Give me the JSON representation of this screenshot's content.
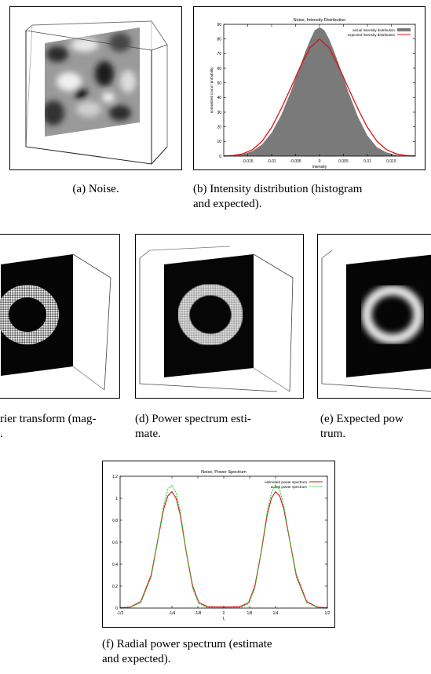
{
  "captions": {
    "a": "(a) Noise.",
    "b_line1": "(b) Intensity distribution (histogram",
    "b_line2": "and expected).",
    "c_line1": "rier transform (mag-",
    "c_line2": ".",
    "d_line1": "(d) Power spectrum esti-",
    "d_line2": "mate.",
    "e_line1": "(e) Expected pow",
    "e_line2": "trum.",
    "f_line1": "(f) Radial power spectrum (estimate",
    "f_line2": "and expected)."
  },
  "colors": {
    "histogram_fill": "#7a7a7a",
    "expected_line": "#dd1111",
    "actual_ps_line": "#22cc22",
    "estimated_ps_line": "#cc1111"
  },
  "chart_data": [
    {
      "id": "intensity",
      "type": "area",
      "title": "Noise, Intensity Distribution",
      "xlabel": "intensity",
      "ylabel": "normalized count / probability",
      "xlim": [
        -0.02,
        0.02
      ],
      "ylim": [
        0,
        90
      ],
      "xticks": [
        -0.015,
        -0.01,
        -0.005,
        0,
        0.005,
        0.01,
        0.015
      ],
      "xtick_labels": [
        "-0.015",
        "-0.01",
        "-0.005",
        "0",
        "0.005",
        "0.01",
        "0.015"
      ],
      "yticks": [
        0,
        10,
        20,
        30,
        40,
        50,
        60,
        70,
        80,
        90
      ],
      "ytick_labels": [
        "0",
        "10",
        "20",
        "30",
        "40",
        "50",
        "60",
        "70",
        "80",
        "90"
      ],
      "legend_position": "top-right",
      "series": [
        {
          "name": "actual intensity distribution",
          "kind": "histogram",
          "x": [
            -0.018,
            -0.016,
            -0.014,
            -0.012,
            -0.01,
            -0.008,
            -0.006,
            -0.004,
            -0.003,
            -0.002,
            -0.001,
            0.0,
            0.001,
            0.002,
            0.003,
            0.004,
            0.006,
            0.008,
            0.01,
            0.012,
            0.014,
            0.016,
            0.018
          ],
          "values": [
            0.3,
            1.2,
            3.5,
            8,
            16,
            28,
            44,
            62,
            71,
            79,
            86,
            88,
            86,
            80,
            72,
            63,
            44,
            27,
            14,
            6,
            2.5,
            0.8,
            0.2
          ]
        },
        {
          "name": "expected intensity distribution",
          "kind": "line",
          "x": [
            -0.02,
            -0.018,
            -0.016,
            -0.014,
            -0.012,
            -0.01,
            -0.008,
            -0.006,
            -0.004,
            -0.002,
            0.0,
            0.002,
            0.004,
            0.006,
            0.008,
            0.01,
            0.012,
            0.014,
            0.016,
            0.018,
            0.02
          ],
          "values": [
            0.1,
            0.5,
            1.6,
            4.4,
            10.1,
            19.6,
            32.4,
            46.6,
            61.2,
            74.0,
            80.0,
            74.0,
            61.2,
            46.6,
            32.4,
            19.6,
            10.1,
            4.4,
            1.6,
            0.5,
            0.1
          ]
        }
      ]
    },
    {
      "id": "power",
      "type": "line",
      "title": "Noise, Power Spectrum",
      "xlabel": "f",
      "xlabel_sub": "r",
      "ylabel": "",
      "xlim": [
        -0.5,
        0.5
      ],
      "ylim": [
        0,
        1.2
      ],
      "xticks": [
        -0.5,
        -0.25,
        -0.125,
        0,
        0.125,
        0.25,
        0.5
      ],
      "xtick_labels": [
        "-1/2",
        "-1/4",
        "-1/8",
        "0",
        "1/8",
        "1/4",
        "1/2"
      ],
      "yticks": [
        0,
        0.2,
        0.4,
        0.6,
        0.8,
        1.0,
        1.2
      ],
      "ytick_labels": [
        "0",
        "0.2",
        "0.4",
        "0.6",
        "0.8",
        "1",
        "1.2"
      ],
      "legend_position": "top-right",
      "series": [
        {
          "name": "estimated power spectrum",
          "x": [
            -0.5,
            -0.45,
            -0.4,
            -0.35,
            -0.32,
            -0.29,
            -0.27,
            -0.25,
            -0.23,
            -0.21,
            -0.18,
            -0.15,
            -0.12,
            -0.08,
            -0.04,
            0,
            0.04,
            0.08,
            0.12,
            0.15,
            0.18,
            0.21,
            0.23,
            0.25,
            0.27,
            0.29,
            0.32,
            0.35,
            0.4,
            0.45,
            0.5
          ],
          "values": [
            0.002,
            0.01,
            0.06,
            0.3,
            0.6,
            0.9,
            1.02,
            1.06,
            1.0,
            0.85,
            0.5,
            0.2,
            0.05,
            0.015,
            0.01,
            0.01,
            0.01,
            0.015,
            0.05,
            0.2,
            0.5,
            0.85,
            1.0,
            1.06,
            1.02,
            0.9,
            0.6,
            0.3,
            0.06,
            0.01,
            0.002
          ]
        },
        {
          "name": "actual power spectrum",
          "x": [
            -0.5,
            -0.45,
            -0.4,
            -0.35,
            -0.32,
            -0.29,
            -0.27,
            -0.25,
            -0.23,
            -0.21,
            -0.18,
            -0.15,
            -0.12,
            -0.08,
            -0.04,
            0,
            0.04,
            0.08,
            0.12,
            0.15,
            0.18,
            0.21,
            0.23,
            0.25,
            0.27,
            0.29,
            0.32,
            0.35,
            0.4,
            0.45,
            0.5
          ],
          "values": [
            0.001,
            0.008,
            0.05,
            0.28,
            0.6,
            0.93,
            1.08,
            1.12,
            1.05,
            0.88,
            0.5,
            0.18,
            0.04,
            0.005,
            0.001,
            0.0,
            0.001,
            0.005,
            0.04,
            0.18,
            0.5,
            0.88,
            1.05,
            1.12,
            1.08,
            0.93,
            0.6,
            0.28,
            0.05,
            0.008,
            0.001
          ]
        }
      ]
    }
  ]
}
